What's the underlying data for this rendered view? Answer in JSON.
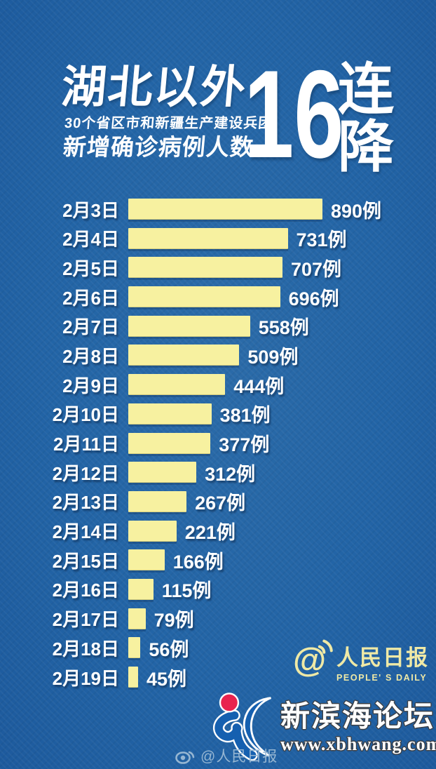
{
  "title": {
    "main": "湖北以外",
    "sub1": "30个省区市和新疆生产建设兵团",
    "sub2": "新增确诊病例人数",
    "streak_number": "16",
    "streak_top": "连",
    "streak_bottom": "降"
  },
  "chart_data": {
    "type": "bar",
    "orientation": "horizontal",
    "title": "湖北以外（30个省区市和新疆生产建设兵团）新增确诊病例人数 16连降",
    "categories": [
      "2月3日",
      "2月4日",
      "2月5日",
      "2月6日",
      "2月7日",
      "2月8日",
      "2月9日",
      "2月10日",
      "2月11日",
      "2月12日",
      "2月13日",
      "2月14日",
      "2月15日",
      "2月16日",
      "2月17日",
      "2月18日",
      "2月19日"
    ],
    "values": [
      890,
      731,
      707,
      696,
      558,
      509,
      444,
      381,
      377,
      312,
      267,
      221,
      166,
      115,
      79,
      56,
      45
    ],
    "unit": "例",
    "xlim": [
      0,
      890
    ],
    "grid": false,
    "legend": false,
    "bar_color": "#f7f1a0"
  },
  "branding": {
    "peoples_daily_name": "人民日报",
    "peoples_daily_english": "PEOPLE' S DAILY",
    "weibo_watermark": "@人民日报",
    "forum_name": "新滨海论坛",
    "forum_url": "www.xbhwang.com"
  },
  "colors": {
    "background": "#2264a6",
    "bar": "#f7f1a0",
    "text": "#ffffff",
    "logo_yellow": "#efe9a6",
    "watermark_blue": "#96b6d2",
    "forum_red": "#e8234e",
    "forum_blue": "#1560b0"
  }
}
